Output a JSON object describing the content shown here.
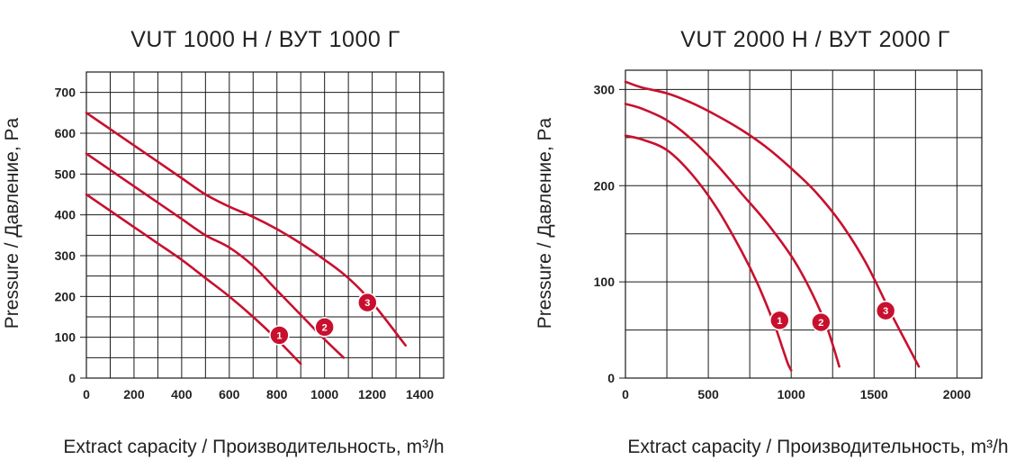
{
  "chart_data": [
    {
      "type": "line",
      "title": "VUT 1000 H / ВУТ 1000 Г",
      "xlabel": "Extract capacity / Производительность, m³/h",
      "ylabel": "Pressure / Давление, Pa",
      "xlim": [
        0,
        1500
      ],
      "ylim": [
        0,
        750
      ],
      "xticks": [
        0,
        200,
        400,
        600,
        800,
        1000,
        1200,
        1400
      ],
      "yticks": [
        0,
        100,
        200,
        300,
        400,
        500,
        600,
        700
      ],
      "xgrid_step": 100,
      "ygrid_step": 50,
      "grid": true,
      "color": "#c8102e",
      "series": [
        {
          "marker_label": "1",
          "x": [
            0,
            100,
            200,
            300,
            400,
            500,
            600,
            700,
            800,
            900
          ],
          "y": [
            450,
            410,
            370,
            330,
            290,
            245,
            200,
            150,
            95,
            35
          ],
          "marker": {
            "x": 810,
            "y": 105
          }
        },
        {
          "marker_label": "2",
          "x": [
            0,
            100,
            200,
            300,
            400,
            500,
            600,
            700,
            800,
            900,
            1000,
            1080
          ],
          "y": [
            550,
            510,
            470,
            430,
            390,
            350,
            320,
            275,
            215,
            155,
            95,
            50
          ],
          "marker": {
            "x": 1000,
            "y": 125
          }
        },
        {
          "marker_label": "3",
          "x": [
            0,
            100,
            200,
            300,
            400,
            500,
            600,
            700,
            800,
            900,
            1000,
            1100,
            1200,
            1340
          ],
          "y": [
            650,
            610,
            570,
            530,
            490,
            450,
            420,
            395,
            365,
            330,
            290,
            245,
            185,
            80
          ],
          "marker": {
            "x": 1180,
            "y": 185
          }
        }
      ]
    },
    {
      "type": "line",
      "title": "VUT 2000 H / ВУТ 2000 Г",
      "xlabel": "Extract capacity / Производительность, m³/h",
      "ylabel": "Pressure / Давление, Pa",
      "xlim": [
        0,
        2150
      ],
      "ylim": [
        0,
        320
      ],
      "xticks": [
        0,
        500,
        1000,
        1500,
        2000
      ],
      "yticks": [
        0,
        100,
        200,
        300
      ],
      "xgrid_step": 250,
      "ygrid_step": 50,
      "grid": true,
      "color": "#c8102e",
      "series": [
        {
          "marker_label": "1",
          "x": [
            0,
            100,
            250,
            400,
            550,
            700,
            800,
            900,
            950,
            980,
            1000
          ],
          "y": [
            252,
            248,
            237,
            212,
            177,
            132,
            97,
            55,
            30,
            15,
            8
          ],
          "marker": {
            "x": 930,
            "y": 60
          }
        },
        {
          "marker_label": "2",
          "x": [
            0,
            100,
            250,
            400,
            550,
            700,
            850,
            1000,
            1100,
            1200,
            1250,
            1290
          ],
          "y": [
            285,
            280,
            268,
            248,
            222,
            192,
            162,
            127,
            97,
            60,
            35,
            12
          ],
          "marker": {
            "x": 1180,
            "y": 58
          }
        },
        {
          "marker_label": "3",
          "x": [
            0,
            100,
            250,
            400,
            550,
            700,
            850,
            1000,
            1150,
            1300,
            1450,
            1600,
            1700,
            1770
          ],
          "y": [
            308,
            302,
            296,
            286,
            273,
            258,
            240,
            218,
            193,
            161,
            120,
            68,
            35,
            12
          ],
          "marker": {
            "x": 1570,
            "y": 70
          }
        }
      ]
    }
  ]
}
